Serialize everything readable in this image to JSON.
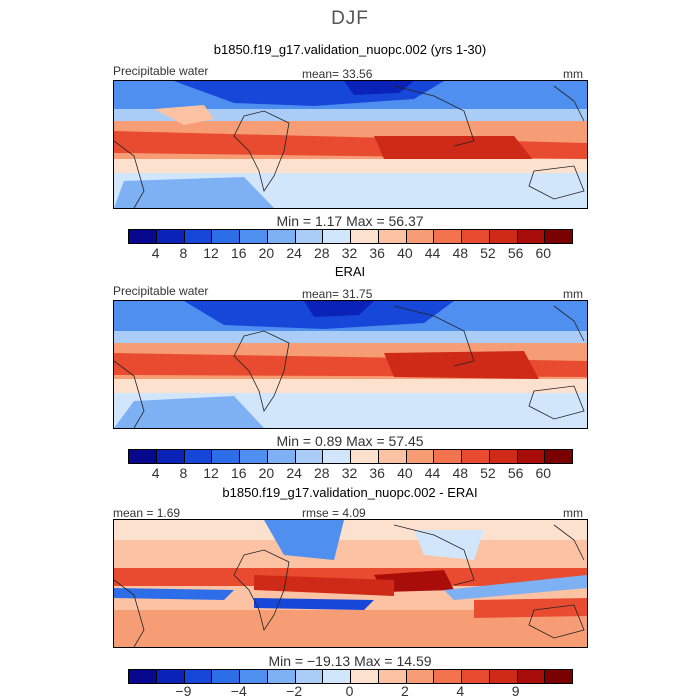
{
  "season": "DJF",
  "colors": {
    "abs_palette": [
      "#08088e",
      "#0b22b8",
      "#1747d8",
      "#2d6ee8",
      "#4f8ff0",
      "#7eb0f4",
      "#a9cdf7",
      "#d2e6fb",
      "#fde1cf",
      "#fbc2a4",
      "#f79d76",
      "#f2744f",
      "#e84b30",
      "#cf2a18",
      "#a80d0a",
      "#7a0000"
    ],
    "diff_palette": [
      "#08088e",
      "#0b22b8",
      "#1747d8",
      "#2d6ee8",
      "#4f8ff0",
      "#7eb0f4",
      "#a9cdf7",
      "#d2e6fb",
      "#fde1cf",
      "#fbc2a4",
      "#f79d76",
      "#f2744f",
      "#e84b30",
      "#cf2a18",
      "#a80d0a",
      "#7a0000"
    ]
  },
  "panels": [
    {
      "title": "b1850.f19_g17.validation_nuopc.002 (yrs 1-30)",
      "left_label": "Precipitable water",
      "mean_label": "mean=  33.56",
      "units": "mm",
      "minmax": "Min =    1.17  Max =   56.37",
      "ticks": [
        "4",
        "8",
        "12",
        "16",
        "20",
        "24",
        "28",
        "32",
        "36",
        "40",
        "44",
        "48",
        "52",
        "56",
        "60"
      ]
    },
    {
      "title": "ERAI",
      "left_label": "Precipitable water",
      "mean_label": "mean=  31.75",
      "units": "mm",
      "minmax": "Min =    0.89  Max =   57.45",
      "ticks": [
        "4",
        "8",
        "12",
        "16",
        "20",
        "24",
        "28",
        "32",
        "36",
        "40",
        "44",
        "48",
        "52",
        "56",
        "60"
      ]
    },
    {
      "title": "b1850.f19_g17.validation_nuopc.002 - ERAI",
      "left_label": "mean =    1.69",
      "mean_label": "rmse =    4.09",
      "units": "mm",
      "minmax": "Min = −19.13  Max =   14.59",
      "ticks": [
        "−9",
        "−4",
        "−2",
        "0",
        "2",
        "4",
        "9"
      ]
    }
  ]
}
